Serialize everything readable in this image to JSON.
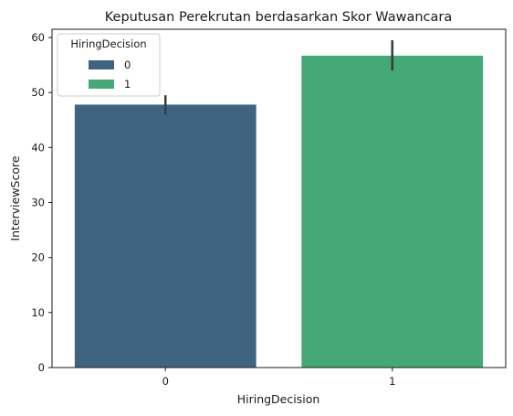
{
  "chart_data": {
    "type": "bar",
    "title": "Keputusan Perekrutan berdasarkan Skor Wawancara",
    "xlabel": "HiringDecision",
    "ylabel": "InterviewScore",
    "categories": [
      "0",
      "1"
    ],
    "values": [
      47.8,
      56.7
    ],
    "error_bars": [
      [
        46.0,
        49.5
      ],
      [
        54.0,
        59.5
      ]
    ],
    "ylim": [
      0,
      61.5
    ],
    "yticks": [
      0,
      10,
      20,
      30,
      40,
      50,
      60
    ],
    "colors": [
      "#3e6482",
      "#45a877"
    ],
    "errorbar_color": "#3d3d3d",
    "grid": false,
    "legend": {
      "title": "HiringDecision",
      "placement": "top-left",
      "entries": [
        {
          "label": "0",
          "color": "#3e6482"
        },
        {
          "label": "1",
          "color": "#45a877"
        }
      ]
    }
  }
}
